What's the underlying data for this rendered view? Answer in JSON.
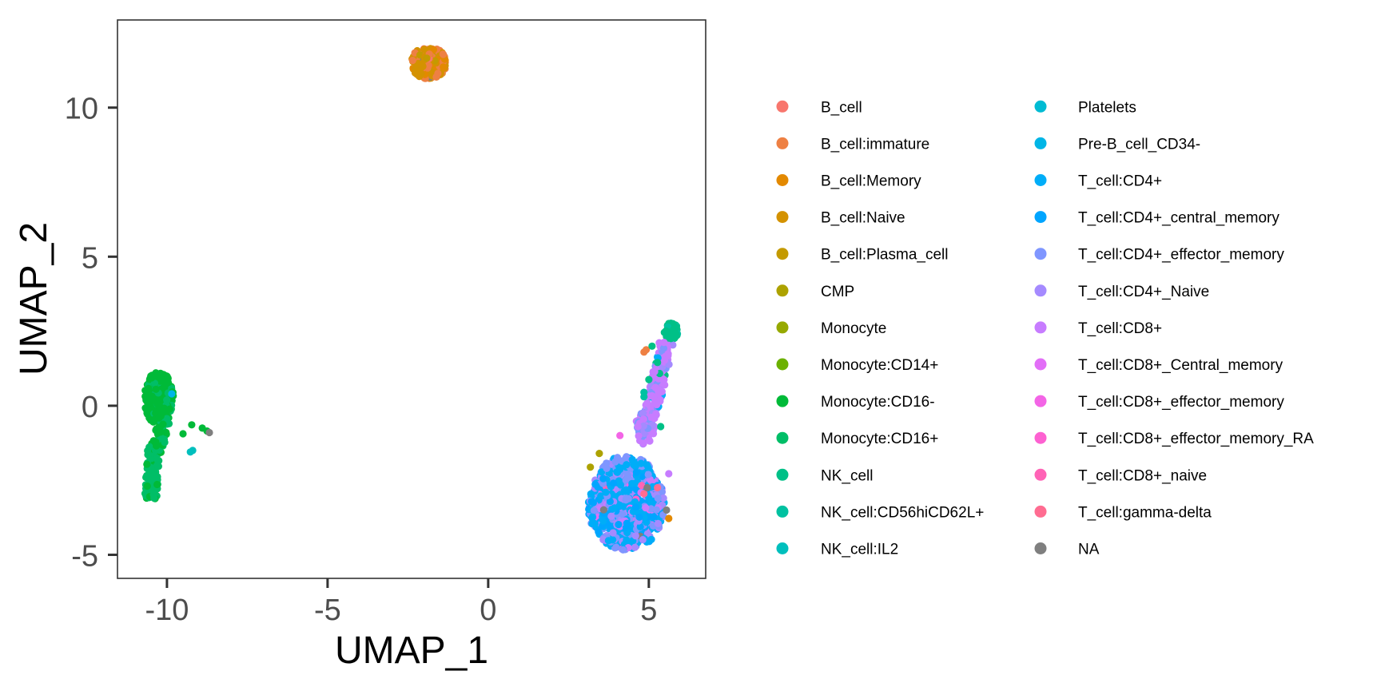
{
  "chart_data": {
    "type": "scatter",
    "title": "",
    "xlabel": "UMAP_1",
    "ylabel": "UMAP_2",
    "xlim": [
      -11.54,
      6.77
    ],
    "ylim": [
      -5.79,
      12.94
    ],
    "x_ticks": [
      -10,
      -5,
      0,
      5
    ],
    "y_ticks": [
      -5,
      0,
      5,
      10
    ],
    "grid": false,
    "legend_placement": "right",
    "legend": [
      {
        "label": "B_cell",
        "color": "#F8766D"
      },
      {
        "label": "B_cell:immature",
        "color": "#EE8043"
      },
      {
        "label": "B_cell:Memory",
        "color": "#E38900"
      },
      {
        "label": "B_cell:Naive",
        "color": "#D49200"
      },
      {
        "label": "B_cell:Plasma_cell",
        "color": "#C49A00"
      },
      {
        "label": "CMP",
        "color": "#ADA200"
      },
      {
        "label": "Monocyte",
        "color": "#96A900"
      },
      {
        "label": "Monocyte:CD14+",
        "color": "#6BB100"
      },
      {
        "label": "Monocyte:CD16-",
        "color": "#00BA38"
      },
      {
        "label": "Monocyte:CD16+",
        "color": "#00BE67"
      },
      {
        "label": "NK_cell",
        "color": "#00C087"
      },
      {
        "label": "NK_cell:CD56hiCD62L+",
        "color": "#00C1A1"
      },
      {
        "label": "NK_cell:IL2",
        "color": "#00BFBD"
      },
      {
        "label": "Platelets",
        "color": "#00BBD3"
      },
      {
        "label": "Pre-B_cell_CD34-",
        "color": "#00B5E6"
      },
      {
        "label": "T_cell:CD4+",
        "color": "#00ADF8"
      },
      {
        "label": "T_cell:CD4+_central_memory",
        "color": "#00A5FF"
      },
      {
        "label": "T_cell:CD4+_effector_memory",
        "color": "#7F96FF"
      },
      {
        "label": "T_cell:CD4+_Naive",
        "color": "#A58AFF"
      },
      {
        "label": "T_cell:CD8+",
        "color": "#C77CFF"
      },
      {
        "label": "T_cell:CD8+_Central_memory",
        "color": "#E26EF7"
      },
      {
        "label": "T_cell:CD8+_effector_memory",
        "color": "#F365E6"
      },
      {
        "label": "T_cell:CD8+_effector_memory_RA",
        "color": "#FD61D1"
      },
      {
        "label": "T_cell:CD8+_naive",
        "color": "#FF63B6"
      },
      {
        "label": "T_cell:gamma-delta",
        "color": "#FF6C91"
      },
      {
        "label": "NA",
        "color": "#7F7F7F"
      }
    ],
    "clusters": [
      {
        "shape": "ellipse",
        "cx": -1.85,
        "cy": 11.5,
        "rx": 0.55,
        "ry": 0.55,
        "members": [
          [
            "B_cell:Naive",
            80
          ],
          [
            "B_cell:immature",
            70
          ],
          [
            "B_cell:Memory",
            20
          ],
          [
            "B_cell:Plasma_cell",
            15
          ],
          [
            "B_cell",
            8
          ],
          [
            "NA",
            2
          ]
        ]
      },
      {
        "shape": "ellipse",
        "cx": -10.25,
        "cy": 0.25,
        "rx": 0.45,
        "ry": 0.9,
        "members": [
          [
            "Monocyte:CD16-",
            220
          ],
          [
            "Monocyte:CD16+",
            60
          ]
        ]
      },
      {
        "shape": "segment",
        "x0": -10.1,
        "y0": -0.6,
        "x1": -10.35,
        "y1": -1.6,
        "w": 0.2,
        "members": [
          [
            "Monocyte:CD16-",
            30
          ],
          [
            "Monocyte:CD16+",
            20
          ]
        ]
      },
      {
        "shape": "segment",
        "x0": -10.4,
        "y0": -1.4,
        "x1": -10.5,
        "y1": -3.1,
        "w": 0.2,
        "members": [
          [
            "Monocyte:CD16+",
            90
          ],
          [
            "Monocyte:CD16-",
            10
          ]
        ]
      },
      {
        "shape": "ellipse",
        "cx": 4.3,
        "cy": -3.35,
        "rx": 1.2,
        "ry": 1.5,
        "members": [
          [
            "T_cell:CD4+",
            250
          ],
          [
            "T_cell:CD4+_central_memory",
            150
          ],
          [
            "T_cell:CD4+_effector_memory",
            150
          ],
          [
            "T_cell:CD4+_Naive",
            120
          ],
          [
            "T_cell:CD8+",
            60
          ],
          [
            "T_cell:CD8+_Central_memory",
            10
          ],
          [
            "T_cell:CD8+_effector_memory",
            5
          ],
          [
            "T_cell:CD8+_effector_memory_RA",
            5
          ],
          [
            "T_cell:CD8+_naive",
            5
          ],
          [
            "NA",
            5
          ]
        ]
      },
      {
        "shape": "ellipse",
        "cx": 4.3,
        "cy": -2.2,
        "rx": 0.8,
        "ry": 0.5,
        "members": [
          [
            "T_cell:CD4+_effector_memory",
            80
          ],
          [
            "T_cell:CD4+",
            30
          ],
          [
            "T_cell:CD4+_Naive",
            20
          ]
        ]
      },
      {
        "shape": "ellipse",
        "cx": 4.9,
        "cy": -0.6,
        "rx": 0.3,
        "ry": 0.4,
        "members": [
          [
            "T_cell:CD4+_effector_memory",
            40
          ],
          [
            "T_cell:CD4+_Naive",
            20
          ],
          [
            "T_cell:CD8+",
            15
          ]
        ]
      },
      {
        "shape": "segment",
        "x0": 4.85,
        "y0": -1.3,
        "x1": 5.55,
        "y1": 2.1,
        "w": 0.22,
        "members": [
          [
            "T_cell:CD8+",
            110
          ],
          [
            "T_cell:CD4+_effector_memory",
            30
          ],
          [
            "T_cell:CD4+_Naive",
            25
          ],
          [
            "NK_cell",
            8
          ],
          [
            "T_cell:CD4+",
            8
          ]
        ]
      },
      {
        "shape": "ellipse",
        "cx": 5.7,
        "cy": 2.5,
        "rx": 0.22,
        "ry": 0.28,
        "members": [
          [
            "NK_cell",
            50
          ],
          [
            "NK_cell:CD56hiCD62L+",
            10
          ]
        ]
      }
    ],
    "points": [
      {
        "x": -9.23,
        "y": -0.64,
        "label": "Monocyte:CD16-"
      },
      {
        "x": -9.5,
        "y": -0.94,
        "label": "Monocyte:CD16-"
      },
      {
        "x": -8.9,
        "y": -0.75,
        "label": "Monocyte:CD16-"
      },
      {
        "x": -8.75,
        "y": -0.85,
        "label": "Monocyte:CD16-"
      },
      {
        "x": -8.68,
        "y": -0.9,
        "label": "NA"
      },
      {
        "x": -9.27,
        "y": -1.55,
        "label": "NK_cell:IL2"
      },
      {
        "x": -9.2,
        "y": -1.5,
        "label": "NK_cell:IL2"
      },
      {
        "x": -9.85,
        "y": 0.4,
        "label": "Pre-B_cell_CD34-"
      },
      {
        "x": 4.85,
        "y": 1.8,
        "label": "B_cell:immature"
      },
      {
        "x": 4.92,
        "y": 1.88,
        "label": "B_cell:immature"
      },
      {
        "x": 5.1,
        "y": 2.0,
        "label": "NK_cell"
      },
      {
        "x": 5.27,
        "y": 1.45,
        "label": "NK_cell"
      },
      {
        "x": 5.0,
        "y": 0.88,
        "label": "NK_cell"
      },
      {
        "x": 4.85,
        "y": 0.45,
        "label": "NK_cell:CD56hiCD62L+"
      },
      {
        "x": 4.85,
        "y": 0.3,
        "label": "NK_cell:CD56hiCD62L+"
      },
      {
        "x": 5.37,
        "y": -0.7,
        "label": "NK_cell"
      },
      {
        "x": 3.46,
        "y": -1.6,
        "label": "CMP"
      },
      {
        "x": 3.18,
        "y": -2.06,
        "label": "CMP"
      },
      {
        "x": 5.62,
        "y": -3.78,
        "label": "B_cell:Memory"
      },
      {
        "x": 5.27,
        "y": -2.75,
        "label": "T_cell:gamma-delta"
      },
      {
        "x": 4.85,
        "y": -2.95,
        "label": "T_cell:gamma-delta"
      },
      {
        "x": 4.1,
        "y": -1.0,
        "label": "T_cell:CD8+_effector_memory"
      },
      {
        "x": 5.62,
        "y": -2.28,
        "label": "T_cell:CD8+"
      },
      {
        "x": 4.95,
        "y": -2.75,
        "label": "NA"
      },
      {
        "x": 5.55,
        "y": -3.5,
        "label": "NA"
      }
    ]
  }
}
